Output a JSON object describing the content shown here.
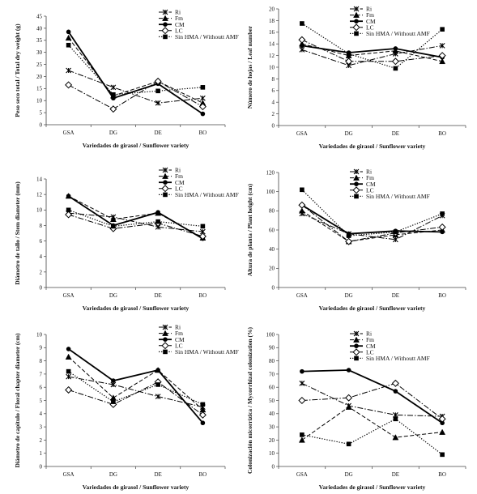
{
  "figure": {
    "series_names": [
      "Ri",
      "Fm",
      "CM",
      "LC",
      "Sin HMA / Withoutt AMF"
    ],
    "styles": [
      {
        "marker": "x",
        "dash": "7 2 1.5 2",
        "width": 1
      },
      {
        "marker": "triangle",
        "dash": "5 2.5",
        "width": 1
      },
      {
        "marker": "circle",
        "dash": "",
        "width": 1.8
      },
      {
        "marker": "diamond",
        "dash": "7 2 1.5 2",
        "width": 1
      },
      {
        "marker": "square",
        "dash": "1.3 1.8",
        "width": 1.2
      }
    ],
    "line_color": "#000000"
  },
  "chart_data": [
    {
      "type": "line",
      "categories": [
        "GSA",
        "DG",
        "DE",
        "BO"
      ],
      "xlabel": "Variedades de girasol / Sunflower variety",
      "ylabel": "Peso seco total / Total dry weight (g)",
      "ylim": [
        0,
        45
      ],
      "yticks": [
        0,
        5,
        10,
        15,
        20,
        25,
        30,
        35,
        40,
        45
      ],
      "legend_position": "top-right",
      "series": [
        {
          "name": "Ri",
          "values": [
            22.5,
            15.5,
            9,
            11
          ]
        },
        {
          "name": "Fm",
          "values": [
            36,
            12,
            18,
            9
          ]
        },
        {
          "name": "CM",
          "values": [
            38.5,
            11,
            17,
            4.5
          ]
        },
        {
          "name": "LC",
          "values": [
            16.5,
            6.5,
            18,
            7.5
          ]
        },
        {
          "name": "Sin HMA / Withoutt AMF",
          "values": [
            33,
            12.5,
            14,
            15.5
          ]
        }
      ]
    },
    {
      "type": "line",
      "categories": [
        "GSA",
        "DG",
        "DE",
        "BO"
      ],
      "xlabel": "Variedades de girasol / Sunflower variety",
      "ylabel": "Número de hojas / Leaf number",
      "ylim": [
        0,
        20
      ],
      "yticks": [
        0,
        2,
        4,
        6,
        8,
        10,
        12,
        14,
        16,
        18,
        20
      ],
      "legend_position": "top-right",
      "series": [
        {
          "name": "Ri",
          "values": [
            13,
            10.3,
            12.3,
            13.7
          ]
        },
        {
          "name": "Fm",
          "values": [
            14,
            12,
            12.8,
            11
          ]
        },
        {
          "name": "CM",
          "values": [
            13.7,
            12.5,
            13.2,
            11.7
          ]
        },
        {
          "name": "LC",
          "values": [
            14.7,
            11,
            11,
            12
          ]
        },
        {
          "name": "Sin HMA / Withoutt AMF",
          "values": [
            17.5,
            12.3,
            9.8,
            16.5
          ]
        }
      ]
    },
    {
      "type": "line",
      "categories": [
        "GSA",
        "DG",
        "DE",
        "BO"
      ],
      "xlabel": "Variedades de girasol / Sunflower variety",
      "ylabel": "Diámetro de tallo / Stem diameter (mm)",
      "ylim": [
        0,
        14
      ],
      "yticks": [
        0,
        2,
        4,
        6,
        8,
        10,
        12,
        14
      ],
      "legend_position": "top-right",
      "series": [
        {
          "name": "Ri",
          "values": [
            9.6,
            9.1,
            7.8,
            7.2
          ]
        },
        {
          "name": "Fm",
          "values": [
            11.8,
            8.8,
            9.6,
            6.4
          ]
        },
        {
          "name": "CM",
          "values": [
            11.8,
            8,
            9.7,
            6.3
          ]
        },
        {
          "name": "LC",
          "values": [
            9.4,
            7.6,
            8.3,
            6.6
          ]
        },
        {
          "name": "Sin HMA / Withoutt AMF",
          "values": [
            10,
            7.9,
            8.5,
            7.9
          ]
        }
      ]
    },
    {
      "type": "line",
      "categories": [
        "GSA",
        "DG",
        "DE",
        "BO"
      ],
      "xlabel": "Variedades de girasol / Sunflower variety",
      "ylabel": "Altura de planta / Plant height (cm)",
      "ylim": [
        0,
        120
      ],
      "yticks": [
        0,
        20,
        40,
        60,
        80,
        100,
        120
      ],
      "legend_position": "top-right",
      "series": [
        {
          "name": "Ri",
          "values": [
            77,
            56,
            50,
            75
          ]
        },
        {
          "name": "Fm",
          "values": [
            80,
            48,
            55,
            60
          ]
        },
        {
          "name": "CM",
          "values": [
            86,
            56,
            59,
            58
          ]
        },
        {
          "name": "LC",
          "values": [
            86,
            48,
            57,
            63
          ]
        },
        {
          "name": "Sin HMA / Withoutt AMF",
          "values": [
            102,
            54,
            58,
            77
          ]
        }
      ]
    },
    {
      "type": "line",
      "categories": [
        "GSA",
        "DG",
        "DE",
        "BO"
      ],
      "xlabel": "Variedades de girasol / Sunflower variety",
      "ylabel": "Diámetro de capítulo / Floral chapter diameter (cm)",
      "ylim": [
        0,
        10
      ],
      "yticks": [
        0,
        1,
        2,
        3,
        4,
        5,
        6,
        7,
        8,
        9,
        10
      ],
      "legend_position": "top-right",
      "series": [
        {
          "name": "Ri",
          "values": [
            6.8,
            6.2,
            5.3,
            4.5
          ]
        },
        {
          "name": "Fm",
          "values": [
            8.3,
            5.2,
            7.3,
            4.3
          ]
        },
        {
          "name": "CM",
          "values": [
            8.9,
            6.5,
            7.3,
            3.3
          ]
        },
        {
          "name": "LC",
          "values": [
            5.8,
            4.7,
            6.4,
            3.9
          ]
        },
        {
          "name": "Sin HMA / Withoutt AMF",
          "values": [
            7.2,
            4.9,
            6.2,
            4.7
          ]
        }
      ]
    },
    {
      "type": "line",
      "categories": [
        "GSA",
        "DG",
        "DE",
        "BO"
      ],
      "xlabel": "Variedades de girasol / Sunflower variety",
      "ylabel": "Colonización micorrízica / Mycorrhizal colonization (%)",
      "ylim": [
        0,
        100
      ],
      "yticks": [
        0,
        10,
        20,
        30,
        40,
        50,
        60,
        70,
        80,
        90,
        100
      ],
      "legend_position": "top-right",
      "series": [
        {
          "name": "Ri",
          "values": [
            63,
            46,
            39,
            38
          ]
        },
        {
          "name": "Fm",
          "values": [
            20,
            45,
            22,
            26
          ]
        },
        {
          "name": "CM",
          "values": [
            72,
            73,
            57,
            33
          ]
        },
        {
          "name": "LC",
          "values": [
            50,
            52,
            63,
            36
          ]
        },
        {
          "name": "Sin HMA / Withoutt AMF",
          "values": [
            24,
            17,
            36,
            9
          ]
        }
      ]
    }
  ]
}
